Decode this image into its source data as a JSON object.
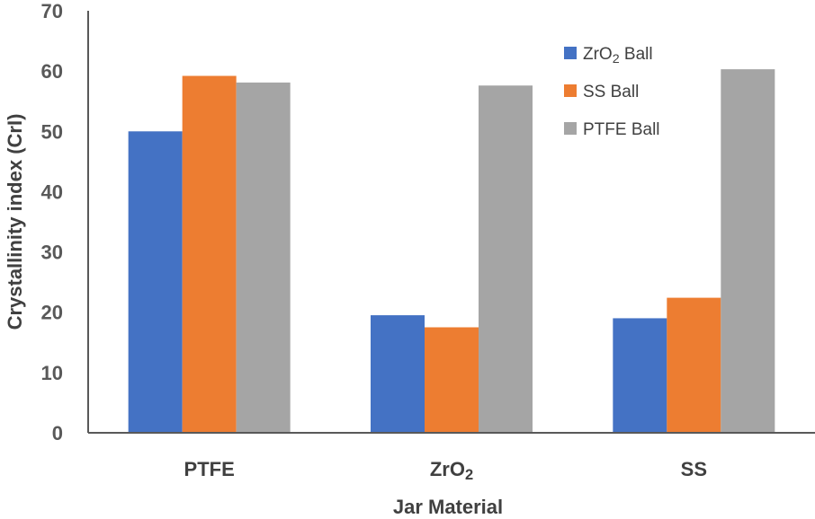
{
  "chart_data": {
    "type": "bar",
    "title": "",
    "xlabel": "Jar Material",
    "ylabel": "Crystallinity index (CrI)",
    "ylim": [
      0,
      70
    ],
    "yticks": [
      0,
      10,
      20,
      30,
      40,
      50,
      60,
      70
    ],
    "grid": false,
    "legend_position": "top-right",
    "categories": [
      {
        "base": "PTFE",
        "sub": ""
      },
      {
        "base": "ZrO",
        "sub": "2"
      },
      {
        "base": "SS",
        "sub": ""
      }
    ],
    "series": [
      {
        "name_base": "ZrO",
        "name_sub": "2",
        "name_tail": " Ball",
        "color": "#4472C4",
        "values": [
          50,
          19.5,
          19
        ]
      },
      {
        "name_base": "SS Ball",
        "name_sub": "",
        "name_tail": "",
        "color": "#ED7D31",
        "values": [
          59.2,
          17.5,
          22.4
        ]
      },
      {
        "name_base": "PTFE Ball",
        "name_sub": "",
        "name_tail": "",
        "color": "#A5A5A5",
        "values": [
          58.1,
          57.6,
          60.3
        ]
      }
    ]
  }
}
